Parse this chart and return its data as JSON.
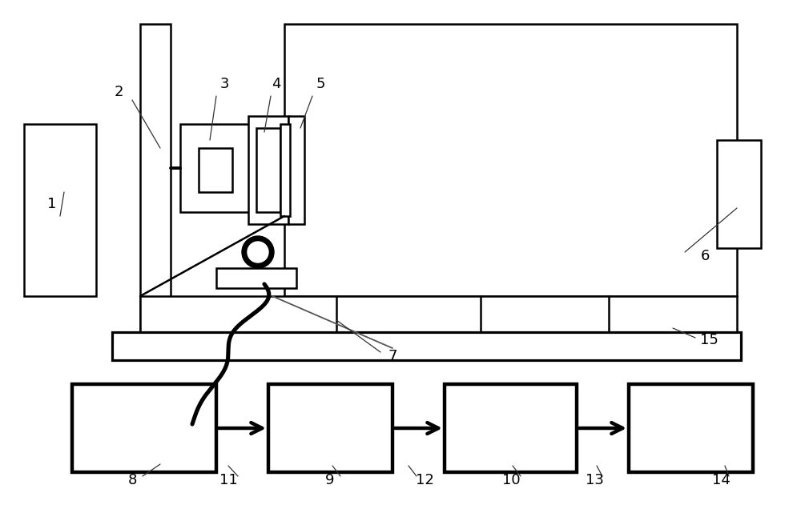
{
  "bg_color": "#ffffff",
  "lc": "#000000",
  "lw": 1.8,
  "tlw": 3.2,
  "fig_w": 10.0,
  "fig_h": 6.41
}
